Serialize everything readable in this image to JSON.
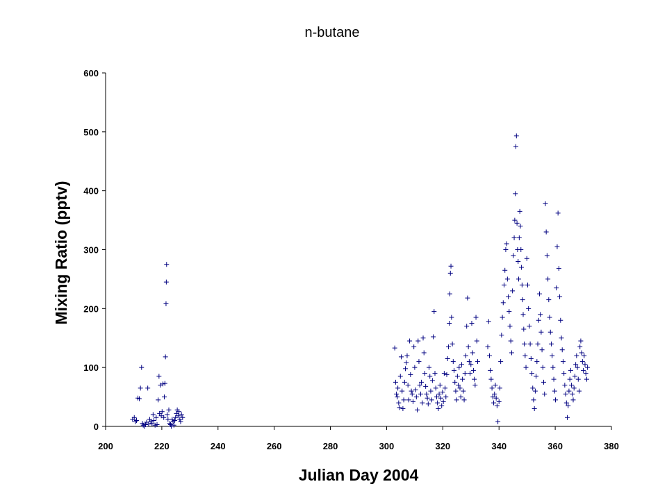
{
  "chart_data": {
    "type": "scatter",
    "title": "n-butane",
    "xlabel": "Julian Day 2004",
    "ylabel": "Mixing Ratio (pptv)",
    "xlim": [
      200,
      380
    ],
    "ylim": [
      0,
      600
    ],
    "x_ticks": [
      200,
      220,
      240,
      260,
      280,
      300,
      320,
      340,
      360,
      380
    ],
    "y_ticks": [
      0,
      100,
      200,
      300,
      400,
      500,
      600
    ],
    "grid": false,
    "legend": "none",
    "marker": "+",
    "color": "#000080",
    "series": [
      {
        "points": [
          [
            209.6,
            12
          ],
          [
            210.2,
            15
          ],
          [
            210.6,
            8
          ],
          [
            211.0,
            10
          ],
          [
            211.5,
            48
          ],
          [
            212.0,
            47
          ],
          [
            212.4,
            65
          ],
          [
            212.8,
            100
          ],
          [
            213.1,
            5
          ],
          [
            213.4,
            2
          ],
          [
            213.8,
            0
          ],
          [
            214.2,
            3
          ],
          [
            214.6,
            7
          ],
          [
            215.0,
            65
          ],
          [
            215.3,
            4
          ],
          [
            215.7,
            12
          ],
          [
            216.1,
            8
          ],
          [
            216.5,
            5
          ],
          [
            216.9,
            20
          ],
          [
            217.2,
            10
          ],
          [
            217.6,
            2
          ],
          [
            218.0,
            15
          ],
          [
            218.3,
            3
          ],
          [
            218.7,
            45
          ],
          [
            219.0,
            85
          ],
          [
            219.2,
            22
          ],
          [
            219.5,
            70
          ],
          [
            219.8,
            18
          ],
          [
            220.1,
            25
          ],
          [
            220.4,
            72
          ],
          [
            220.7,
            15
          ],
          [
            220.9,
            50
          ],
          [
            221.1,
            73
          ],
          [
            221.3,
            118
          ],
          [
            221.5,
            208
          ],
          [
            221.6,
            245
          ],
          [
            221.7,
            275
          ],
          [
            221.9,
            20
          ],
          [
            222.2,
            12
          ],
          [
            222.5,
            28
          ],
          [
            222.8,
            5
          ],
          [
            223.1,
            3
          ],
          [
            223.4,
            0
          ],
          [
            223.7,
            12
          ],
          [
            224.0,
            8
          ],
          [
            224.3,
            2
          ],
          [
            224.6,
            10
          ],
          [
            224.9,
            15
          ],
          [
            225.2,
            22
          ],
          [
            225.5,
            28
          ],
          [
            225.8,
            18
          ],
          [
            226.1,
            25
          ],
          [
            226.4,
            12
          ],
          [
            226.7,
            8
          ],
          [
            227.0,
            20
          ],
          [
            227.4,
            15
          ],
          [
            302.9,
            133
          ],
          [
            303.2,
            75
          ],
          [
            303.5,
            55
          ],
          [
            303.8,
            50
          ],
          [
            304.0,
            65
          ],
          [
            304.3,
            40
          ],
          [
            304.6,
            32
          ],
          [
            304.9,
            85
          ],
          [
            305.2,
            118
          ],
          [
            305.5,
            60
          ],
          [
            305.8,
            30
          ],
          [
            306.1,
            45
          ],
          [
            306.4,
            75
          ],
          [
            306.7,
            98
          ],
          [
            307.0,
            108
          ],
          [
            307.3,
            120
          ],
          [
            307.6,
            70
          ],
          [
            307.9,
            45
          ],
          [
            308.2,
            145
          ],
          [
            308.5,
            88
          ],
          [
            308.8,
            60
          ],
          [
            309.1,
            55
          ],
          [
            309.4,
            42
          ],
          [
            309.7,
            135
          ],
          [
            310.0,
            100
          ],
          [
            310.3,
            62
          ],
          [
            310.6,
            50
          ],
          [
            310.9,
            28
          ],
          [
            311.2,
            145
          ],
          [
            311.5,
            110
          ],
          [
            311.8,
            70
          ],
          [
            312.1,
            55
          ],
          [
            312.4,
            75
          ],
          [
            312.7,
            40
          ],
          [
            313.0,
            150
          ],
          [
            313.3,
            125
          ],
          [
            313.6,
            90
          ],
          [
            313.9,
            68
          ],
          [
            314.2,
            55
          ],
          [
            314.5,
            48
          ],
          [
            314.8,
            38
          ],
          [
            315.1,
            100
          ],
          [
            315.4,
            85
          ],
          [
            315.7,
            60
          ],
          [
            316.0,
            45
          ],
          [
            316.3,
            78
          ],
          [
            316.6,
            152
          ],
          [
            316.9,
            195
          ],
          [
            317.2,
            90
          ],
          [
            317.5,
            65
          ],
          [
            317.8,
            50
          ],
          [
            318.1,
            40
          ],
          [
            318.4,
            30
          ],
          [
            318.7,
            55
          ],
          [
            319.0,
            70
          ],
          [
            319.3,
            48
          ],
          [
            319.6,
            35
          ],
          [
            319.9,
            58
          ],
          [
            320.2,
            42
          ],
          [
            320.5,
            90
          ],
          [
            320.8,
            65
          ],
          [
            321.1,
            50
          ],
          [
            321.4,
            88
          ],
          [
            321.7,
            115
          ],
          [
            322.0,
            135
          ],
          [
            322.3,
            175
          ],
          [
            322.5,
            225
          ],
          [
            322.7,
            260
          ],
          [
            322.9,
            272
          ],
          [
            323.1,
            185
          ],
          [
            323.4,
            140
          ],
          [
            323.7,
            110
          ],
          [
            324.0,
            95
          ],
          [
            324.3,
            75
          ],
          [
            324.6,
            60
          ],
          [
            324.9,
            45
          ],
          [
            325.2,
            85
          ],
          [
            325.5,
            70
          ],
          [
            325.8,
            100
          ],
          [
            326.1,
            65
          ],
          [
            326.4,
            50
          ],
          [
            326.7,
            105
          ],
          [
            327.0,
            80
          ],
          [
            327.3,
            60
          ],
          [
            327.6,
            45
          ],
          [
            327.9,
            90
          ],
          [
            328.2,
            120
          ],
          [
            328.5,
            170
          ],
          [
            328.8,
            218
          ],
          [
            329.1,
            135
          ],
          [
            329.4,
            110
          ],
          [
            329.7,
            90
          ],
          [
            330.0,
            105
          ],
          [
            330.3,
            175
          ],
          [
            330.6,
            125
          ],
          [
            330.9,
            95
          ],
          [
            331.2,
            80
          ],
          [
            331.5,
            70
          ],
          [
            331.8,
            185
          ],
          [
            332.1,
            145
          ],
          [
            332.4,
            110
          ],
          [
            336.0,
            135
          ],
          [
            336.3,
            178
          ],
          [
            336.6,
            120
          ],
          [
            336.9,
            95
          ],
          [
            337.2,
            80
          ],
          [
            337.5,
            65
          ],
          [
            337.8,
            50
          ],
          [
            338.1,
            40
          ],
          [
            338.4,
            55
          ],
          [
            338.7,
            70
          ],
          [
            339.0,
            48
          ],
          [
            339.3,
            35
          ],
          [
            339.6,
            8
          ],
          [
            340.0,
            42
          ],
          [
            340.3,
            65
          ],
          [
            340.6,
            110
          ],
          [
            340.9,
            155
          ],
          [
            341.2,
            185
          ],
          [
            341.5,
            210
          ],
          [
            341.8,
            240
          ],
          [
            342.1,
            265
          ],
          [
            342.4,
            300
          ],
          [
            342.7,
            310
          ],
          [
            343.0,
            250
          ],
          [
            343.3,
            220
          ],
          [
            343.6,
            195
          ],
          [
            343.9,
            170
          ],
          [
            344.2,
            145
          ],
          [
            344.5,
            125
          ],
          [
            344.8,
            230
          ],
          [
            345.1,
            290
          ],
          [
            345.4,
            320
          ],
          [
            345.6,
            350
          ],
          [
            345.8,
            395
          ],
          [
            346.0,
            475
          ],
          [
            346.2,
            493
          ],
          [
            346.4,
            345
          ],
          [
            346.6,
            300
          ],
          [
            346.8,
            280
          ],
          [
            347.0,
            250
          ],
          [
            347.2,
            320
          ],
          [
            347.4,
            365
          ],
          [
            347.6,
            340
          ],
          [
            347.8,
            300
          ],
          [
            348.0,
            270
          ],
          [
            348.2,
            240
          ],
          [
            348.4,
            215
          ],
          [
            348.6,
            190
          ],
          [
            348.8,
            165
          ],
          [
            349.0,
            140
          ],
          [
            349.3,
            120
          ],
          [
            349.6,
            100
          ],
          [
            349.9,
            285
          ],
          [
            350.2,
            240
          ],
          [
            350.5,
            200
          ],
          [
            350.8,
            170
          ],
          [
            351.1,
            140
          ],
          [
            351.4,
            115
          ],
          [
            351.7,
            90
          ],
          [
            352.0,
            65
          ],
          [
            352.3,
            45
          ],
          [
            352.6,
            30
          ],
          [
            352.9,
            60
          ],
          [
            353.2,
            85
          ],
          [
            353.5,
            110
          ],
          [
            353.8,
            140
          ],
          [
            354.1,
            180
          ],
          [
            354.4,
            225
          ],
          [
            354.7,
            190
          ],
          [
            355.0,
            160
          ],
          [
            355.3,
            130
          ],
          [
            355.6,
            100
          ],
          [
            355.9,
            75
          ],
          [
            356.2,
            55
          ],
          [
            356.5,
            378
          ],
          [
            356.8,
            330
          ],
          [
            357.1,
            290
          ],
          [
            357.4,
            250
          ],
          [
            357.7,
            215
          ],
          [
            358.0,
            185
          ],
          [
            358.3,
            160
          ],
          [
            358.6,
            140
          ],
          [
            358.9,
            120
          ],
          [
            359.2,
            100
          ],
          [
            359.5,
            80
          ],
          [
            359.8,
            60
          ],
          [
            360.1,
            45
          ],
          [
            360.4,
            235
          ],
          [
            360.7,
            305
          ],
          [
            361.0,
            362
          ],
          [
            361.3,
            268
          ],
          [
            361.6,
            220
          ],
          [
            361.9,
            180
          ],
          [
            362.2,
            150
          ],
          [
            362.5,
            130
          ],
          [
            362.8,
            110
          ],
          [
            363.1,
            90
          ],
          [
            363.4,
            70
          ],
          [
            363.7,
            55
          ],
          [
            364.0,
            40
          ],
          [
            364.3,
            15
          ],
          [
            364.6,
            35
          ],
          [
            364.9,
            60
          ],
          [
            365.2,
            80
          ],
          [
            365.5,
            95
          ],
          [
            365.8,
            70
          ],
          [
            366.1,
            55
          ],
          [
            366.4,
            45
          ],
          [
            366.7,
            65
          ],
          [
            367.0,
            85
          ],
          [
            367.3,
            105
          ],
          [
            367.6,
            120
          ],
          [
            367.9,
            100
          ],
          [
            368.2,
            80
          ],
          [
            368.5,
            60
          ],
          [
            368.8,
            135
          ],
          [
            369.1,
            145
          ],
          [
            369.4,
            125
          ],
          [
            369.7,
            110
          ],
          [
            370.0,
            95
          ],
          [
            370.3,
            120
          ],
          [
            370.6,
            105
          ],
          [
            370.9,
            90
          ],
          [
            371.2,
            80
          ],
          [
            371.5,
            100
          ]
        ]
      }
    ]
  }
}
